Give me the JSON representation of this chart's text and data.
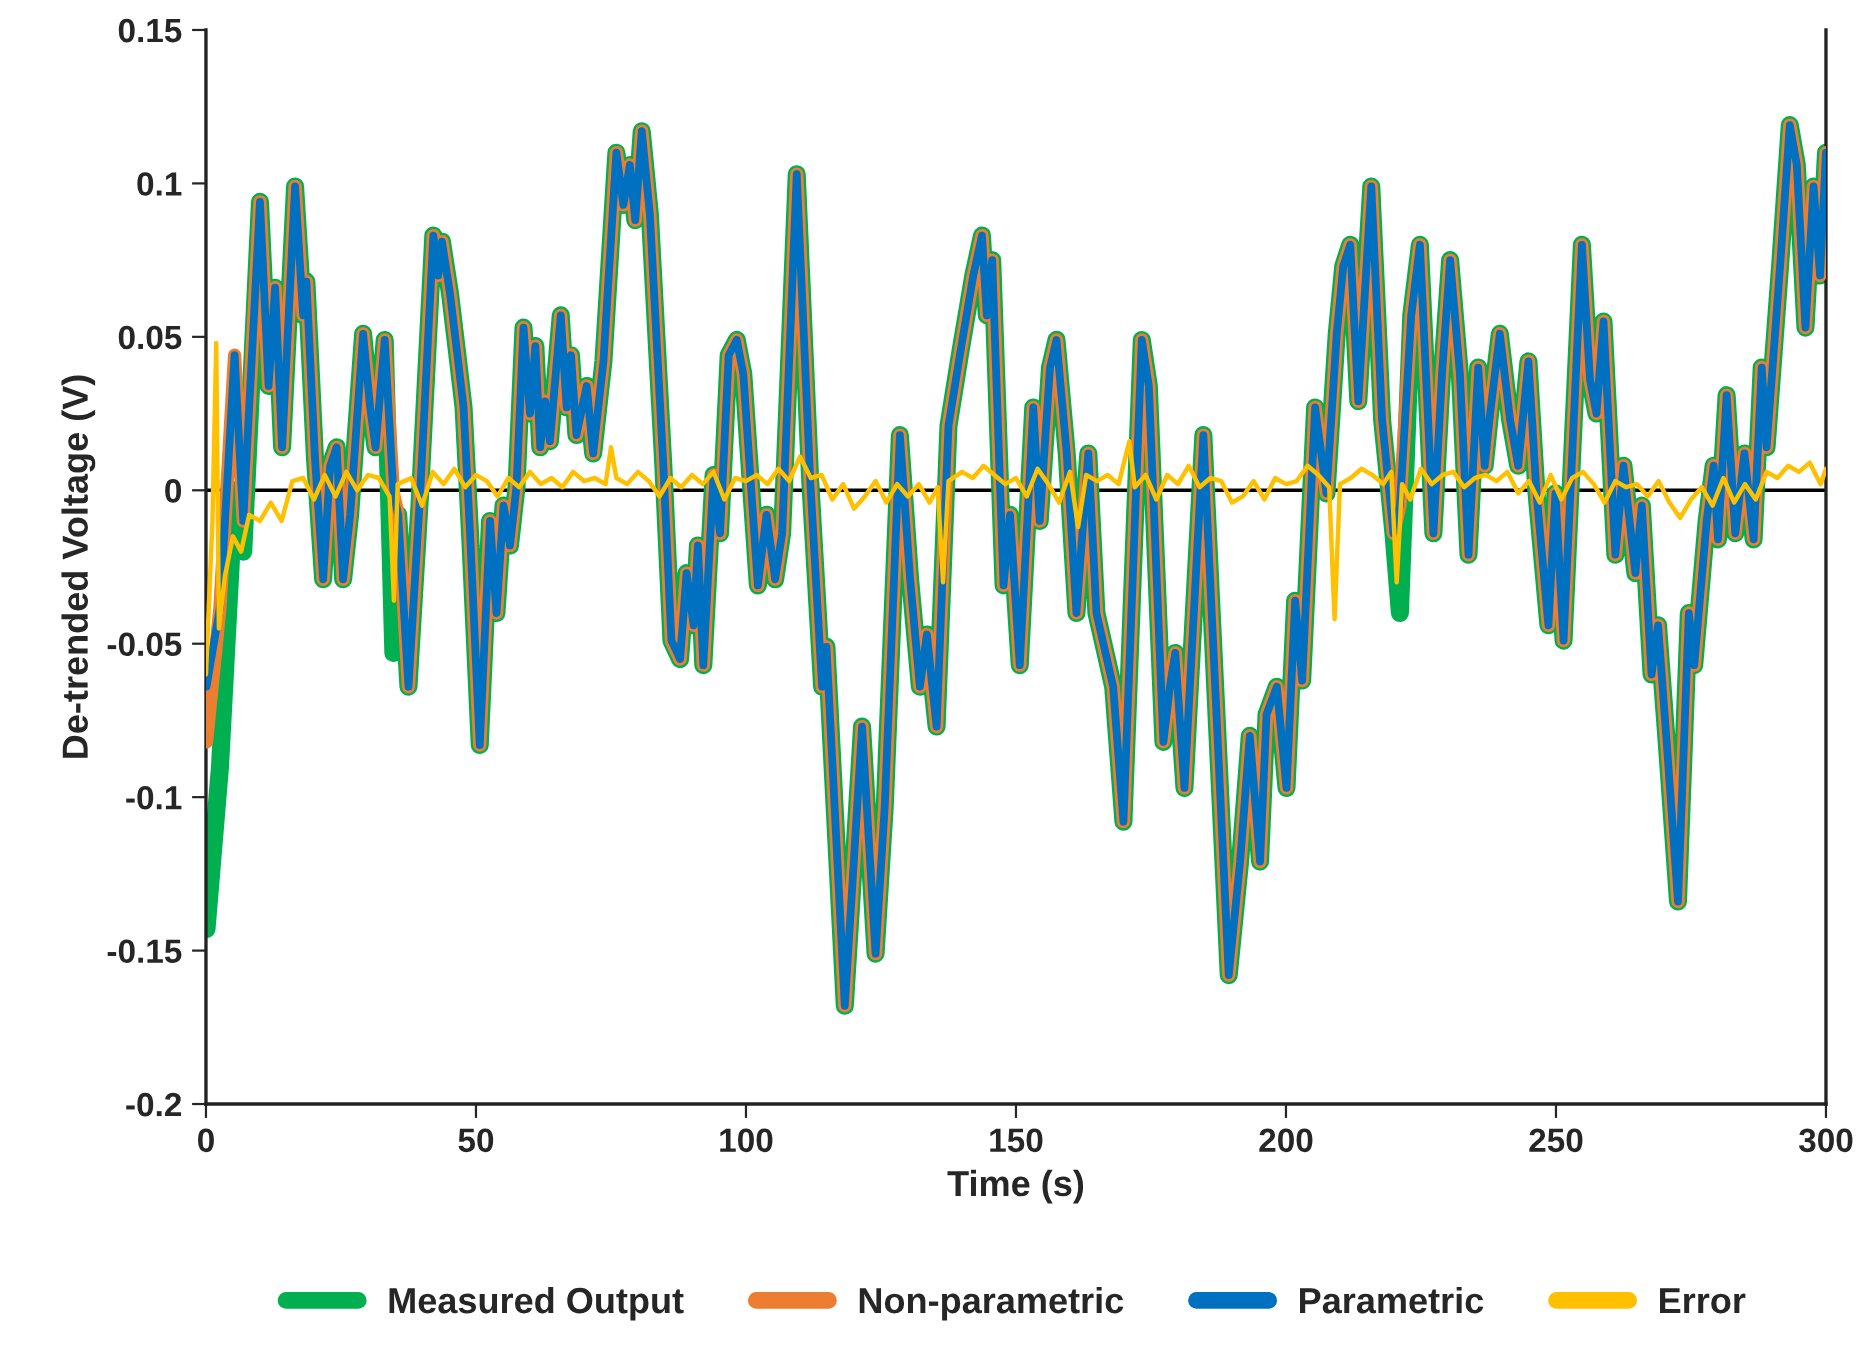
{
  "chart_data": {
    "type": "line",
    "xlabel": "Time (s)",
    "ylabel": "De-trended Voltage (V)",
    "x": [
      0.1,
      2.6,
      5.3,
      6.9,
      10,
      11.6,
      12.8,
      14.1,
      16.5,
      18,
      18.6,
      20.2,
      21.7,
      23,
      24.2,
      25.4,
      26.7,
      29.1,
      30.4,
      31.4,
      33.1,
      34.7,
      35.6,
      37.5,
      39.6,
      42.1,
      43,
      43.7,
      45.2,
      46.7,
      47.7,
      48.9,
      50.7,
      52.6,
      53.8,
      55.1,
      56.3,
      57.5,
      58.8,
      60,
      61,
      61.9,
      62.8,
      63.7,
      65.7,
      66.8,
      67.6,
      68.6,
      70.5,
      71.7,
      73.6,
      76,
      77.3,
      78.5,
      79.5,
      80.7,
      82.2,
      84.7,
      86.2,
      87.8,
      89,
      90.3,
      91.1,
      92.1,
      94,
      95.2,
      96.8,
      98.3,
      99.5,
      102.2,
      103.8,
      105.4,
      106.7,
      109.4,
      111.9,
      114.1,
      114.9,
      118.3,
      119.9,
      121.5,
      124,
      125.7,
      128.5,
      130.4,
      132.2,
      133.5,
      135.3,
      137.5,
      139.6,
      142.1,
      143.7,
      144.6,
      145.6,
      147.7,
      148.9,
      150.7,
      153.2,
      154.4,
      156.3,
      157.5,
      159.4,
      161.2,
      163.4,
      164.9,
      168,
      169.9,
      173.3,
      174.6,
      177.3,
      178.5,
      179.5,
      181.2,
      184.7,
      189.4,
      191.5,
      193.3,
      195.2,
      196.4,
      198.3,
      200.1,
      201.7,
      203,
      205.4,
      207.5,
      209.4,
      210.6,
      211.9,
      213.4,
      215.8,
      217.8,
      219.9,
      221.1,
      223.2,
      224.8,
      227.3,
      228.9,
      230.4,
      232.2,
      233.8,
      235.6,
      236.8,
      237.8,
      239.6,
      241.5,
      243,
      244.9,
      246.4,
      248.6,
      249.9,
      251.4,
      254.8,
      256.3,
      257.5,
      258.8,
      261,
      262.5,
      264.7,
      265.9,
      267.7,
      268.9,
      270.5,
      272.6,
      274.6,
      275.6,
      277.9,
      279.2,
      280,
      281.6,
      283.2,
      284.9,
      286.6,
      288.1,
      289,
      291.5,
      293.3,
      294.6,
      296.2,
      297.7,
      298.9,
      300
    ],
    "series": [
      {
        "name": "Measured Output",
        "color": "#00b050",
        "values": [
          -0.143,
          -0.09,
          0.0,
          -0.02,
          0.094,
          0.034,
          0.066,
          0.014,
          0.099,
          0.057,
          0.068,
          0.01,
          -0.029,
          0.008,
          0.014,
          -0.029,
          -0.008,
          0.051,
          0.027,
          0.014,
          0.049,
          -0.053,
          -0.008,
          -0.064,
          -0.003,
          0.083,
          0.07,
          0.081,
          0.064,
          0.042,
          0.027,
          -0.014,
          -0.083,
          -0.01,
          -0.04,
          -0.005,
          -0.018,
          0.001,
          0.053,
          0.025,
          0.047,
          0.014,
          0.029,
          0.016,
          0.057,
          0.027,
          0.044,
          0.018,
          0.034,
          0.012,
          0.042,
          0.11,
          0.093,
          0.106,
          0.088,
          0.117,
          0.09,
          0.008,
          -0.049,
          -0.055,
          -0.027,
          -0.044,
          -0.018,
          -0.057,
          0.005,
          -0.014,
          0.044,
          0.049,
          0.038,
          -0.031,
          -0.008,
          -0.029,
          -0.014,
          0.103,
          0.003,
          -0.064,
          -0.051,
          -0.168,
          -0.123,
          -0.077,
          -0.151,
          -0.103,
          0.018,
          -0.029,
          -0.064,
          -0.047,
          -0.077,
          0.021,
          0.044,
          0.07,
          0.083,
          0.057,
          0.075,
          -0.031,
          -0.008,
          -0.057,
          0.027,
          -0.01,
          0.04,
          0.049,
          0.012,
          -0.04,
          0.012,
          -0.04,
          -0.064,
          -0.108,
          0.049,
          0.034,
          -0.082,
          -0.064,
          -0.053,
          -0.097,
          0.018,
          -0.158,
          -0.121,
          -0.08,
          -0.121,
          -0.073,
          -0.064,
          -0.097,
          -0.036,
          -0.062,
          0.027,
          -0.001,
          0.051,
          0.073,
          0.08,
          0.029,
          0.099,
          0.023,
          -0.014,
          -0.04,
          0.057,
          0.08,
          -0.014,
          0.038,
          0.075,
          0.038,
          -0.021,
          0.04,
          0.008,
          0.025,
          0.051,
          0.023,
          0.008,
          0.042,
          -0.001,
          -0.044,
          -0.001,
          -0.049,
          0.08,
          0.036,
          0.025,
          0.055,
          -0.021,
          0.008,
          -0.027,
          -0.005,
          -0.06,
          -0.044,
          -0.082,
          -0.134,
          -0.04,
          -0.057,
          -0.01,
          0.008,
          -0.016,
          0.031,
          -0.014,
          0.012,
          -0.016,
          0.04,
          0.014,
          0.073,
          0.119,
          0.106,
          0.053,
          0.099,
          0.07,
          0.11
        ]
      },
      {
        "name": "Non-parametric",
        "color": "#ed7d31",
        "values": [
          -0.082,
          -0.038,
          0.044,
          -0.01,
          0.094,
          0.034,
          0.066,
          0.014,
          0.099,
          0.057,
          0.068,
          0.01,
          -0.029,
          0.008,
          0.014,
          -0.029,
          -0.008,
          0.051,
          0.027,
          0.014,
          0.049,
          -0.001,
          -0.008,
          -0.064,
          -0.003,
          0.083,
          0.07,
          0.081,
          0.064,
          0.042,
          0.027,
          -0.014,
          -0.083,
          -0.01,
          -0.04,
          -0.005,
          -0.018,
          0.001,
          0.053,
          0.025,
          0.047,
          0.014,
          0.029,
          0.016,
          0.057,
          0.027,
          0.044,
          0.018,
          0.034,
          0.012,
          0.042,
          0.11,
          0.093,
          0.106,
          0.088,
          0.117,
          0.09,
          0.008,
          -0.049,
          -0.055,
          -0.027,
          -0.044,
          -0.018,
          -0.057,
          0.005,
          -0.014,
          0.044,
          0.049,
          0.038,
          -0.031,
          -0.008,
          -0.029,
          -0.014,
          0.103,
          0.003,
          -0.064,
          -0.051,
          -0.168,
          -0.123,
          -0.077,
          -0.151,
          -0.103,
          0.018,
          -0.029,
          -0.064,
          -0.047,
          -0.077,
          0.021,
          0.044,
          0.07,
          0.083,
          0.057,
          0.075,
          -0.031,
          -0.008,
          -0.057,
          0.027,
          -0.01,
          0.04,
          0.049,
          0.012,
          -0.04,
          0.012,
          -0.04,
          -0.064,
          -0.108,
          0.049,
          0.034,
          -0.082,
          -0.064,
          -0.053,
          -0.097,
          0.018,
          -0.158,
          -0.121,
          -0.08,
          -0.121,
          -0.073,
          -0.064,
          -0.097,
          -0.036,
          -0.062,
          0.027,
          -0.001,
          0.051,
          0.073,
          0.08,
          0.029,
          0.099,
          0.023,
          -0.014,
          -0.005,
          0.057,
          0.08,
          -0.014,
          0.038,
          0.075,
          0.038,
          -0.021,
          0.04,
          0.008,
          0.025,
          0.051,
          0.023,
          0.008,
          0.042,
          -0.001,
          -0.044,
          -0.001,
          -0.049,
          0.08,
          0.036,
          0.025,
          0.055,
          -0.021,
          0.008,
          -0.027,
          -0.005,
          -0.06,
          -0.044,
          -0.082,
          -0.134,
          -0.04,
          -0.057,
          -0.01,
          0.008,
          -0.016,
          0.031,
          -0.014,
          0.012,
          -0.016,
          0.04,
          0.014,
          0.073,
          0.119,
          0.106,
          0.053,
          0.099,
          0.07,
          0.11
        ]
      },
      {
        "name": "Parametric",
        "color": "#0070c0",
        "values": [
          -0.064,
          -0.038,
          0.044,
          -0.01,
          0.094,
          0.034,
          0.066,
          0.014,
          0.099,
          0.057,
          0.068,
          0.01,
          -0.029,
          0.008,
          0.014,
          -0.029,
          -0.008,
          0.051,
          0.027,
          0.014,
          0.049,
          -0.001,
          -0.008,
          -0.064,
          -0.003,
          0.083,
          0.07,
          0.081,
          0.064,
          0.042,
          0.027,
          -0.014,
          -0.083,
          -0.01,
          -0.04,
          -0.005,
          -0.018,
          0.001,
          0.053,
          0.025,
          0.047,
          0.014,
          0.029,
          0.016,
          0.057,
          0.027,
          0.044,
          0.018,
          0.034,
          0.012,
          0.042,
          0.11,
          0.093,
          0.106,
          0.088,
          0.117,
          0.09,
          0.008,
          -0.049,
          -0.055,
          -0.027,
          -0.044,
          -0.018,
          -0.057,
          0.005,
          -0.014,
          0.044,
          0.049,
          0.038,
          -0.031,
          -0.008,
          -0.029,
          -0.014,
          0.103,
          0.003,
          -0.064,
          -0.051,
          -0.168,
          -0.123,
          -0.077,
          -0.151,
          -0.103,
          0.018,
          -0.029,
          -0.064,
          -0.047,
          -0.077,
          0.021,
          0.044,
          0.07,
          0.083,
          0.057,
          0.075,
          -0.031,
          -0.008,
          -0.057,
          0.027,
          -0.01,
          0.04,
          0.049,
          0.012,
          -0.04,
          0.012,
          -0.04,
          -0.064,
          -0.108,
          0.049,
          0.034,
          -0.082,
          -0.064,
          -0.053,
          -0.097,
          0.018,
          -0.158,
          -0.121,
          -0.08,
          -0.121,
          -0.073,
          -0.064,
          -0.097,
          -0.036,
          -0.062,
          0.027,
          -0.001,
          0.051,
          0.073,
          0.08,
          0.029,
          0.099,
          0.023,
          -0.014,
          -0.005,
          0.057,
          0.08,
          -0.014,
          0.038,
          0.075,
          0.038,
          -0.021,
          0.04,
          0.008,
          0.025,
          0.051,
          0.023,
          0.008,
          0.042,
          -0.001,
          -0.044,
          -0.001,
          -0.049,
          0.08,
          0.036,
          0.025,
          0.055,
          -0.021,
          0.008,
          -0.027,
          -0.005,
          -0.06,
          -0.044,
          -0.082,
          -0.134,
          -0.04,
          -0.057,
          -0.01,
          0.008,
          -0.016,
          0.031,
          -0.014,
          0.012,
          -0.016,
          0.04,
          0.014,
          0.073,
          0.119,
          0.106,
          0.053,
          0.099,
          0.07,
          0.11
        ]
      },
      {
        "name": "Error",
        "color": "#ffc000",
        "x": [
          0,
          1.2,
          1.9,
          2.4,
          3.5,
          5,
          6.5,
          8,
          10,
          12,
          14,
          16,
          18,
          20,
          22,
          24,
          26,
          28,
          30,
          32,
          34,
          34.8,
          35.5,
          38,
          40,
          42,
          44,
          46,
          48,
          50,
          52,
          54,
          56,
          58,
          60,
          62,
          64,
          66,
          68,
          70,
          72,
          74,
          75,
          76,
          78,
          80,
          82,
          84,
          86,
          88,
          90,
          92,
          94,
          96,
          98,
          100,
          102,
          104,
          106,
          108,
          110,
          112,
          114,
          116,
          118,
          120,
          122,
          124,
          126,
          128,
          130,
          132,
          134,
          135.5,
          136.5,
          137.5,
          140,
          142,
          144,
          146,
          148,
          150,
          152,
          154,
          156,
          158,
          160,
          161.5,
          163,
          165,
          167,
          169,
          171,
          172,
          174,
          176,
          178,
          180,
          182,
          184,
          186,
          188,
          190,
          192,
          194,
          196,
          198,
          200,
          202,
          204,
          206,
          208,
          209,
          210,
          212,
          214,
          216,
          218,
          219.5,
          220.5,
          221.5,
          223,
          225,
          227,
          229,
          231,
          233,
          235,
          237,
          239,
          241,
          243,
          245,
          247,
          249,
          251,
          253,
          255,
          257,
          259,
          261,
          263,
          265,
          267,
          269,
          271,
          273,
          275,
          277,
          279,
          281,
          283,
          285,
          287,
          289,
          291,
          293,
          295,
          297,
          299,
          300
        ],
        "values": [
          -0.06,
          -0.01,
          0.048,
          -0.045,
          -0.028,
          -0.015,
          -0.02,
          -0.008,
          -0.01,
          -0.004,
          -0.01,
          0.003,
          0.004,
          -0.003,
          0.005,
          -0.002,
          0.006,
          0.0,
          0.005,
          0.004,
          -0.002,
          -0.036,
          0.002,
          0.004,
          -0.005,
          0.006,
          0.002,
          0.007,
          0.001,
          0.005,
          0.003,
          -0.002,
          0.004,
          0.001,
          0.006,
          0.002,
          0.004,
          0.001,
          0.006,
          0.003,
          0.004,
          0.002,
          0.014,
          0.004,
          0.002,
          0.006,
          0.003,
          -0.002,
          0.004,
          0.001,
          0.005,
          0.002,
          0.006,
          -0.003,
          0.004,
          0.003,
          0.005,
          0.002,
          0.007,
          0.003,
          0.011,
          0.004,
          0.005,
          -0.003,
          0.002,
          -0.006,
          -0.002,
          0.003,
          -0.004,
          0.002,
          -0.002,
          0.002,
          -0.004,
          0.001,
          -0.03,
          0.003,
          0.006,
          0.004,
          0.008,
          0.005,
          0.002,
          0.004,
          -0.002,
          0.007,
          0.002,
          -0.004,
          0.006,
          -0.012,
          0.005,
          0.003,
          0.005,
          0.002,
          0.016,
          0.001,
          0.005,
          -0.003,
          0.005,
          0.002,
          0.008,
          0.001,
          0.004,
          0.003,
          -0.004,
          -0.002,
          0.003,
          -0.003,
          0.004,
          0.002,
          0.003,
          0.008,
          0.005,
          0.001,
          -0.042,
          0.002,
          0.004,
          0.007,
          0.005,
          0.002,
          0.006,
          -0.03,
          0.002,
          -0.003,
          0.007,
          0.002,
          0.005,
          0.006,
          0.001,
          0.004,
          0.005,
          0.003,
          0.006,
          -0.001,
          0.003,
          -0.004,
          0.005,
          -0.003,
          0.004,
          0.006,
          0.002,
          -0.004,
          0.003,
          0.001,
          0.002,
          -0.002,
          0.003,
          -0.004,
          -0.009,
          -0.003,
          0.001,
          -0.005,
          0.004,
          -0.004,
          0.002,
          -0.003,
          0.006,
          0.004,
          0.008,
          0.006,
          0.009,
          0.002,
          0.007
        ]
      }
    ],
    "xlim": [
      0,
      300
    ],
    "xticks": [
      0,
      50,
      100,
      150,
      200,
      250,
      300
    ],
    "ylim": [
      -0.2,
      0.15
    ],
    "yticks": [
      -0.2,
      -0.15,
      -0.1,
      -0.05,
      0,
      0.05,
      0.1,
      0.15
    ],
    "ref_lines": [
      {
        "axis": "y",
        "value": 0,
        "color": "#000000"
      }
    ],
    "grid": false,
    "legend": "bottom",
    "marker": "none",
    "line_style": "solid"
  }
}
